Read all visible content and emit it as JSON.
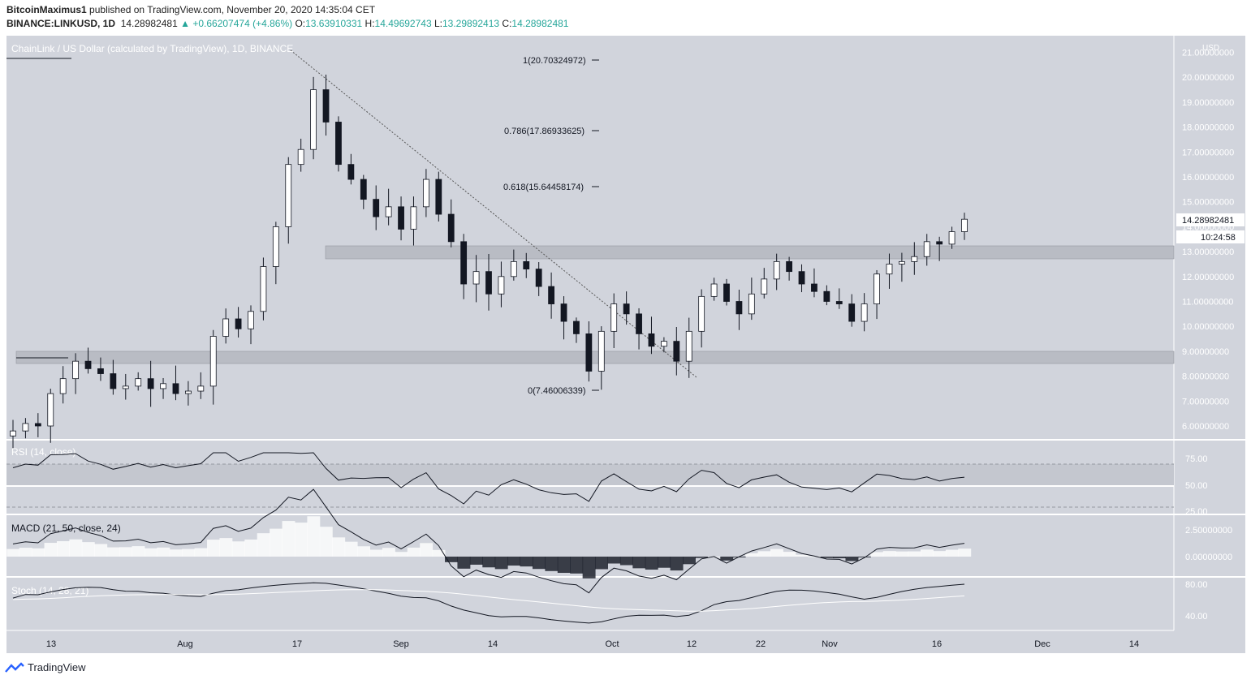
{
  "header": {
    "author": "BitcoinMaximus1",
    "published_text": "published on TradingView.com, November 20, 2020 14:35:04 CET",
    "symbol": "BINANCE:LINKUSD, 1D",
    "last": "14.28982481",
    "change": "+0.66207474 (+4.86%)",
    "o_label": "O:",
    "o": "13.63910331",
    "h_label": "H:",
    "h": "14.49692743",
    "l_label": "L:",
    "l": "13.29892413",
    "c_label": "C:",
    "c": "14.28982481"
  },
  "main_pane": {
    "title": "ChainLink / US Dollar (calculated by TradingView), 1D, BINANCE",
    "currency": "USD",
    "price_tag": "14.28982481",
    "countdown": "10:24:58"
  },
  "fib_levels": [
    {
      "label": "1(20.70324972)",
      "price": 20.70324972
    },
    {
      "label": "0.786(17.86933625)",
      "price": 17.86933625
    },
    {
      "label": "0.618(15.64458174)",
      "price": 15.64458174
    },
    {
      "label": "0(7.46006339)",
      "price": 7.46006339
    }
  ],
  "rsi_pane": {
    "title": "RSI (14, close)",
    "ticks": [
      "75.00",
      "50.00",
      "25.00"
    ]
  },
  "macd_pane": {
    "title": "MACD (21, 50, close, 24)",
    "ticks": [
      "2.50000000",
      "0.00000000"
    ]
  },
  "stoch_pane": {
    "title": "Stoch (14, 28, 21)",
    "ticks": [
      "80.00",
      "40.00"
    ]
  },
  "footer": {
    "brand": "TradingView"
  },
  "colors": {
    "panel_bg": "#d1d4dc",
    "up": "#ffffff",
    "down": "#131722",
    "accent": "#26a69a",
    "zone": "#b9bcc4"
  },
  "chart_data": {
    "type": "candlestick",
    "title": "ChainLink / US Dollar (calculated by TradingView), 1D, BINANCE",
    "ylabel": "USD",
    "ylim": [
      5.5,
      21.5
    ],
    "y_ticks": [
      "21.00000000",
      "20.00000000",
      "19.00000000",
      "18.00000000",
      "17.00000000",
      "16.00000000",
      "15.00000000",
      "14.00000000",
      "13.00000000",
      "12.00000000",
      "11.00000000",
      "10.00000000",
      "9.00000000",
      "8.00000000",
      "7.00000000",
      "6.00000000"
    ],
    "x_ticks": [
      "13",
      "Aug",
      "17",
      "Sep",
      "14",
      "Oct",
      "12",
      "22",
      "Nov",
      "16",
      "Dec",
      "14"
    ],
    "candles_close_approx": [
      5.8,
      6.1,
      6.0,
      7.3,
      7.9,
      8.6,
      8.3,
      8.1,
      7.5,
      7.6,
      7.9,
      7.5,
      7.7,
      7.3,
      7.4,
      7.6,
      9.6,
      10.3,
      9.9,
      10.6,
      12.4,
      14.0,
      16.5,
      17.1,
      19.5,
      18.2,
      16.5,
      15.9,
      15.1,
      14.4,
      14.8,
      13.9,
      14.8,
      15.9,
      14.5,
      13.4,
      11.7,
      12.2,
      11.3,
      12.0,
      12.6,
      12.3,
      11.6,
      10.9,
      10.2,
      9.7,
      8.2,
      9.8,
      10.9,
      10.5,
      9.7,
      9.2,
      9.4,
      8.6,
      9.8,
      11.2,
      11.7,
      11.0,
      10.5,
      11.3,
      11.9,
      12.6,
      12.2,
      11.7,
      11.4,
      11.0,
      10.9,
      10.2,
      10.9,
      12.1,
      12.5,
      12.6,
      12.8,
      13.4,
      13.3,
      13.8,
      14.3
    ],
    "support_zones": [
      [
        12.7,
        13.25
      ],
      [
        8.5,
        9.0
      ]
    ],
    "trendline": {
      "from": [
        "Aug 17",
        20.7
      ],
      "to": [
        "Oct 10",
        8.0
      ]
    },
    "rsi": {
      "ylim": [
        20,
        95
      ],
      "overbought": 70,
      "middle": 50,
      "oversold": 30
    },
    "macd": {
      "ylim": [
        -1.8,
        3.2
      ]
    },
    "stoch": {
      "ylim": [
        20,
        95
      ]
    }
  }
}
